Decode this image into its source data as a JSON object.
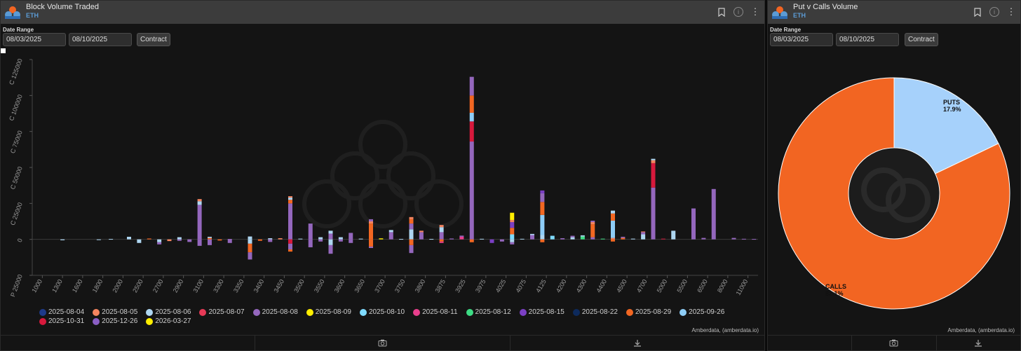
{
  "left_panel": {
    "title": "Block Volume Traded",
    "asset": "ETH",
    "date_range_label": "Date Range",
    "start_date": "08/03/2025",
    "end_date": "08/10/2025",
    "contract_label": "Contract",
    "credit": "Amberdata, (amberdata.io)"
  },
  "right_panel": {
    "title": "Put v Calls Volume",
    "asset": "ETH",
    "date_range_label": "Date Range",
    "start_date": "08/03/2025",
    "end_date": "08/10/2025",
    "contract_label": "Contract",
    "credit": "Amberdata, (amberdata.io)"
  },
  "icons": {
    "bookmark": "bookmark-icon",
    "info": "info-icon",
    "menu": "more-vertical-icon",
    "camera": "camera-icon",
    "download": "download-icon"
  },
  "legend": [
    {
      "label": "2025-08-04",
      "color": "#1e3a8a"
    },
    {
      "label": "2025-08-05",
      "color": "#f4845f"
    },
    {
      "label": "2025-08-06",
      "color": "#aed6f1"
    },
    {
      "label": "2025-08-07",
      "color": "#e63956"
    },
    {
      "label": "2025-08-08",
      "color": "#9467bd"
    },
    {
      "label": "2025-08-09",
      "color": "#ffee00"
    },
    {
      "label": "2025-08-10",
      "color": "#7fdbff"
    },
    {
      "label": "2025-08-11",
      "color": "#e83e8c"
    },
    {
      "label": "2025-08-12",
      "color": "#3ddc84"
    },
    {
      "label": "2025-08-15",
      "color": "#7b3fc4"
    },
    {
      "label": "2025-08-22",
      "color": "#0d2a5c"
    },
    {
      "label": "2025-08-29",
      "color": "#f26722"
    },
    {
      "label": "2025-09-26",
      "color": "#8ecdf7"
    },
    {
      "label": "2025-10-31",
      "color": "#d7193c"
    },
    {
      "label": "2025-12-26",
      "color": "#8a5ec4"
    },
    {
      "label": "2026-03-27",
      "color": "#ffee00"
    }
  ],
  "chart_data": [
    {
      "type": "bar",
      "stacked": true,
      "title": "",
      "xlabel": "",
      "ylabel": "",
      "y_tick_labels": [
        "P 25000",
        "0",
        "C 25000",
        "C 50000",
        "C 75000",
        "C 100000",
        "C 125000"
      ],
      "ylim": [
        -25000,
        125000
      ],
      "grid": false,
      "legend_position": "bottom",
      "categories": [
        "1000",
        "1300",
        "1600",
        "1800",
        "2000",
        "2500",
        "2700",
        "2900",
        "3100",
        "3300",
        "3350",
        "3400",
        "3450",
        "3500",
        "3550",
        "3600",
        "3650",
        "3700",
        "3750",
        "3800",
        "3875",
        "3925",
        "3975",
        "4025",
        "4075",
        "4125",
        "4200",
        "4300",
        "4400",
        "4500",
        "4700",
        "5000",
        "5500",
        "6500",
        "8000",
        "11000"
      ],
      "bars": [
        {
          "x": 1,
          "segments": [
            {
              "v": -600,
              "c": "#aed6f1"
            }
          ]
        },
        {
          "x": 2.8,
          "segments": [
            {
              "v": -500,
              "c": "#aed6f1"
            }
          ]
        },
        {
          "x": 3.4,
          "segments": [
            {
              "v": 300,
              "c": "#aed6f1"
            }
          ]
        },
        {
          "x": 4.3,
          "segments": [
            {
              "v": 1800,
              "c": "#aed6f1"
            }
          ]
        },
        {
          "x": 4.8,
          "segments": [
            {
              "v": -2500,
              "c": "#aed6f1"
            }
          ]
        },
        {
          "x": 5.3,
          "segments": [
            {
              "v": 600,
              "c": "#f26722"
            }
          ]
        },
        {
          "x": 5.8,
          "segments": [
            {
              "v": -2000,
              "c": "#aed6f1"
            },
            {
              "v": -1500,
              "c": "#9467bd"
            }
          ]
        },
        {
          "x": 6.3,
          "segments": [
            {
              "v": -1200,
              "c": "#f4845f"
            }
          ]
        },
        {
          "x": 6.8,
          "segments": [
            {
              "v": 1500,
              "c": "#aed6f1"
            },
            {
              "v": -1000,
              "c": "#9467bd"
            }
          ]
        },
        {
          "x": 7.3,
          "segments": [
            {
              "v": -1800,
              "c": "#9467bd"
            }
          ]
        },
        {
          "x": 7.8,
          "segments": [
            {
              "v": 24000,
              "c": "#9467bd"
            },
            {
              "v": 2500,
              "c": "#aed6f1"
            },
            {
              "v": 1500,
              "c": "#f4845f"
            },
            {
              "v": -4500,
              "c": "#9467bd"
            }
          ]
        },
        {
          "x": 8.3,
          "segments": [
            {
              "v": 1000,
              "c": "#f26722"
            },
            {
              "v": 800,
              "c": "#aed6f1"
            },
            {
              "v": -4000,
              "c": "#9467bd"
            }
          ]
        },
        {
          "x": 8.8,
          "segments": [
            {
              "v": -800,
              "c": "#f26722"
            }
          ]
        },
        {
          "x": 9.3,
          "segments": [
            {
              "v": 300,
              "c": "#9467bd"
            },
            {
              "v": -2500,
              "c": "#9467bd"
            }
          ]
        },
        {
          "x": 10.3,
          "segments": [
            {
              "v": 2000,
              "c": "#aed6f1"
            },
            {
              "v": -3000,
              "c": "#aed6f1"
            },
            {
              "v": -6000,
              "c": "#f26722"
            },
            {
              "v": -5000,
              "c": "#9467bd"
            }
          ]
        },
        {
          "x": 10.8,
          "segments": [
            {
              "v": -1000,
              "c": "#f26722"
            }
          ]
        },
        {
          "x": 11.3,
          "segments": [
            {
              "v": 800,
              "c": "#aed6f1"
            },
            {
              "v": -1800,
              "c": "#9467bd"
            }
          ]
        },
        {
          "x": 11.8,
          "segments": [
            {
              "v": 800,
              "c": "#f4845f"
            }
          ]
        },
        {
          "x": 12.3,
          "segments": [
            {
              "v": 25000,
              "c": "#9467bd"
            },
            {
              "v": 2500,
              "c": "#f26722"
            },
            {
              "v": 1500,
              "c": "#aed6f1"
            },
            {
              "v": 1000,
              "c": "#f4845f"
            },
            {
              "v": -3000,
              "c": "#d7193c"
            },
            {
              "v": -4000,
              "c": "#9467bd"
            },
            {
              "v": -1500,
              "c": "#f26722"
            }
          ]
        },
        {
          "x": 12.8,
          "segments": [
            {
              "v": 500,
              "c": "#aed6f1"
            }
          ]
        },
        {
          "x": 13.3,
          "segments": [
            {
              "v": 11000,
              "c": "#9467bd"
            },
            {
              "v": -5500,
              "c": "#9467bd"
            }
          ]
        },
        {
          "x": 13.8,
          "segments": [
            {
              "v": 1500,
              "c": "#aed6f1"
            },
            {
              "v": -1500,
              "c": "#9467bd"
            }
          ]
        },
        {
          "x": 14.3,
          "segments": [
            {
              "v": 4000,
              "c": "#9467bd"
            },
            {
              "v": 2000,
              "c": "#aed6f1"
            },
            {
              "v": -4000,
              "c": "#aed6f1"
            },
            {
              "v": -6000,
              "c": "#9467bd"
            }
          ]
        },
        {
          "x": 14.8,
          "segments": [
            {
              "v": 1500,
              "c": "#aed6f1"
            },
            {
              "v": -1500,
              "c": "#9467bd"
            }
          ]
        },
        {
          "x": 15.3,
          "segments": [
            {
              "v": 4500,
              "c": "#9467bd"
            },
            {
              "v": -2500,
              "c": "#9467bd"
            }
          ]
        },
        {
          "x": 15.8,
          "segments": [
            {
              "v": 500,
              "c": "#aed6f1"
            }
          ]
        },
        {
          "x": 16.3,
          "segments": [
            {
              "v": 11000,
              "c": "#f26722"
            },
            {
              "v": 1500,
              "c": "#f4845f"
            },
            {
              "v": 1500,
              "c": "#9467bd"
            },
            {
              "v": -5000,
              "c": "#f26722"
            },
            {
              "v": -1000,
              "c": "#9467bd"
            }
          ]
        },
        {
          "x": 16.8,
          "segments": [
            {
              "v": 700,
              "c": "#ffee00"
            }
          ]
        },
        {
          "x": 17.3,
          "segments": [
            {
              "v": 5000,
              "c": "#9467bd"
            },
            {
              "v": 1500,
              "c": "#aed6f1"
            }
          ]
        },
        {
          "x": 17.8,
          "segments": [
            {
              "v": 300,
              "c": "#aed6f1"
            }
          ]
        },
        {
          "x": 18.3,
          "segments": [
            {
              "v": 7000,
              "c": "#aed6f1"
            },
            {
              "v": 4000,
              "c": "#9467bd"
            },
            {
              "v": 3000,
              "c": "#f26722"
            },
            {
              "v": 1500,
              "c": "#f4845f"
            },
            {
              "v": -4000,
              "c": "#f26722"
            },
            {
              "v": -5500,
              "c": "#9467bd"
            }
          ]
        },
        {
          "x": 18.8,
          "segments": [
            {
              "v": 5000,
              "c": "#9467bd"
            },
            {
              "v": 1000,
              "c": "#f4845f"
            }
          ]
        },
        {
          "x": 19.3,
          "segments": [
            {
              "v": 300,
              "c": "#aed6f1"
            }
          ]
        },
        {
          "x": 19.8,
          "segments": [
            {
              "v": 5000,
              "c": "#9467bd"
            },
            {
              "v": 3500,
              "c": "#aed6f1"
            },
            {
              "v": 1500,
              "c": "#f4845f"
            },
            {
              "v": -1500,
              "c": "#f26722"
            },
            {
              "v": -1000,
              "c": "#e83e8c"
            }
          ]
        },
        {
          "x": 20.3,
          "segments": [
            {
              "v": 600,
              "c": "#9467bd"
            }
          ]
        },
        {
          "x": 20.8,
          "segments": [
            {
              "v": 1800,
              "c": "#e83e8c"
            },
            {
              "v": 800,
              "c": "#9467bd"
            }
          ]
        },
        {
          "x": 21.3,
          "segments": [
            {
              "v": 68000,
              "c": "#9467bd"
            },
            {
              "v": 14000,
              "c": "#d7193c"
            },
            {
              "v": 6000,
              "c": "#8ecdf7"
            },
            {
              "v": 12000,
              "c": "#f26722"
            },
            {
              "v": 13000,
              "c": "#9467bd"
            },
            {
              "v": -2000,
              "c": "#f26722"
            }
          ]
        },
        {
          "x": 21.8,
          "segments": [
            {
              "v": 400,
              "c": "#aed6f1"
            }
          ]
        },
        {
          "x": 22.3,
          "segments": [
            {
              "v": -2500,
              "c": "#7b3fc4"
            }
          ]
        },
        {
          "x": 22.8,
          "segments": [
            {
              "v": -1500,
              "c": "#9467bd"
            }
          ]
        },
        {
          "x": 23.3,
          "segments": [
            {
              "v": 3500,
              "c": "#7fdbff"
            },
            {
              "v": 4500,
              "c": "#f26722"
            },
            {
              "v": 4000,
              "c": "#7b3fc4"
            },
            {
              "v": 1500,
              "c": "#f4845f"
            },
            {
              "v": 5000,
              "c": "#ffee00"
            },
            {
              "v": -2000,
              "c": "#aed6f1"
            },
            {
              "v": -1500,
              "c": "#9467bd"
            }
          ]
        },
        {
          "x": 23.8,
          "segments": [
            {
              "v": 400,
              "c": "#aed6f1"
            }
          ]
        },
        {
          "x": 24.3,
          "segments": [
            {
              "v": 3000,
              "c": "#9467bd"
            },
            {
              "v": 800,
              "c": "#aed6f1"
            }
          ]
        },
        {
          "x": 24.8,
          "segments": [
            {
              "v": 3000,
              "c": "#aed6f1"
            },
            {
              "v": 14000,
              "c": "#8ecdf7"
            },
            {
              "v": 9000,
              "c": "#f26722"
            },
            {
              "v": 6000,
              "c": "#9467bd"
            },
            {
              "v": 2000,
              "c": "#7b3fc4"
            },
            {
              "v": -2000,
              "c": "#f26722"
            }
          ]
        },
        {
          "x": 25.3,
          "segments": [
            {
              "v": 2500,
              "c": "#7fdbff"
            }
          ]
        },
        {
          "x": 25.8,
          "segments": [
            {
              "v": 800,
              "c": "#9467bd"
            }
          ]
        },
        {
          "x": 26.3,
          "segments": [
            {
              "v": 1500,
              "c": "#aed6f1"
            },
            {
              "v": 1000,
              "c": "#9467bd"
            }
          ]
        },
        {
          "x": 26.8,
          "segments": [
            {
              "v": 2000,
              "c": "#3ddc84"
            },
            {
              "v": 800,
              "c": "#aed6f1"
            }
          ]
        },
        {
          "x": 27.3,
          "segments": [
            {
              "v": 1500,
              "c": "#9467bd"
            },
            {
              "v": 9000,
              "c": "#f26722"
            },
            {
              "v": 1500,
              "c": "#f4845f"
            },
            {
              "v": 1000,
              "c": "#9467bd"
            }
          ]
        },
        {
          "x": 27.8,
          "segments": [
            {
              "v": 500,
              "c": "#3ddc84"
            }
          ]
        },
        {
          "x": 28.3,
          "segments": [
            {
              "v": 1000,
              "c": "#f4845f"
            },
            {
              "v": 12000,
              "c": "#8ecdf7"
            },
            {
              "v": 5000,
              "c": "#f26722"
            },
            {
              "v": 2000,
              "c": "#aed6f1"
            },
            {
              "v": -1500,
              "c": "#f26722"
            }
          ]
        },
        {
          "x": 28.8,
          "segments": [
            {
              "v": 1000,
              "c": "#f26722"
            },
            {
              "v": 800,
              "c": "#9467bd"
            }
          ]
        },
        {
          "x": 29.3,
          "segments": [
            {
              "v": 500,
              "c": "#aed6f1"
            }
          ]
        },
        {
          "x": 29.8,
          "segments": [
            {
              "v": 3500,
              "c": "#aed6f1"
            },
            {
              "v": 1500,
              "c": "#9467bd"
            },
            {
              "v": 500,
              "c": "#f4845f"
            }
          ]
        },
        {
          "x": 30.3,
          "segments": [
            {
              "v": 36000,
              "c": "#9467bd"
            },
            {
              "v": 17000,
              "c": "#d7193c"
            },
            {
              "v": 2000,
              "c": "#f4845f"
            },
            {
              "v": 1000,
              "c": "#aed6f1"
            }
          ]
        },
        {
          "x": 30.8,
          "segments": [
            {
              "v": 500,
              "c": "#d7193c"
            }
          ]
        },
        {
          "x": 31.3,
          "segments": [
            {
              "v": 6000,
              "c": "#aed6f1"
            }
          ]
        },
        {
          "x": 32.3,
          "segments": [
            {
              "v": 21500,
              "c": "#9467bd"
            }
          ]
        },
        {
          "x": 32.8,
          "segments": [
            {
              "v": 1000,
              "c": "#9467bd"
            }
          ]
        },
        {
          "x": 33.3,
          "segments": [
            {
              "v": 35000,
              "c": "#9467bd"
            }
          ]
        },
        {
          "x": 34.3,
          "segments": [
            {
              "v": 1000,
              "c": "#9467bd"
            }
          ]
        },
        {
          "x": 34.8,
          "segments": [
            {
              "v": 400,
              "c": "#9467bd"
            }
          ]
        },
        {
          "x": 35.3,
          "segments": [
            {
              "v": 300,
              "c": "#9467bd"
            }
          ]
        }
      ]
    },
    {
      "type": "pie",
      "donut": true,
      "title": "",
      "slices": [
        {
          "label": "PUTS",
          "value": 17.9,
          "display": "17.9%",
          "color": "#a6d1fb"
        },
        {
          "label": "CALLS",
          "value": 82.1,
          "display": "82.1%",
          "color": "#f26522"
        }
      ]
    }
  ]
}
